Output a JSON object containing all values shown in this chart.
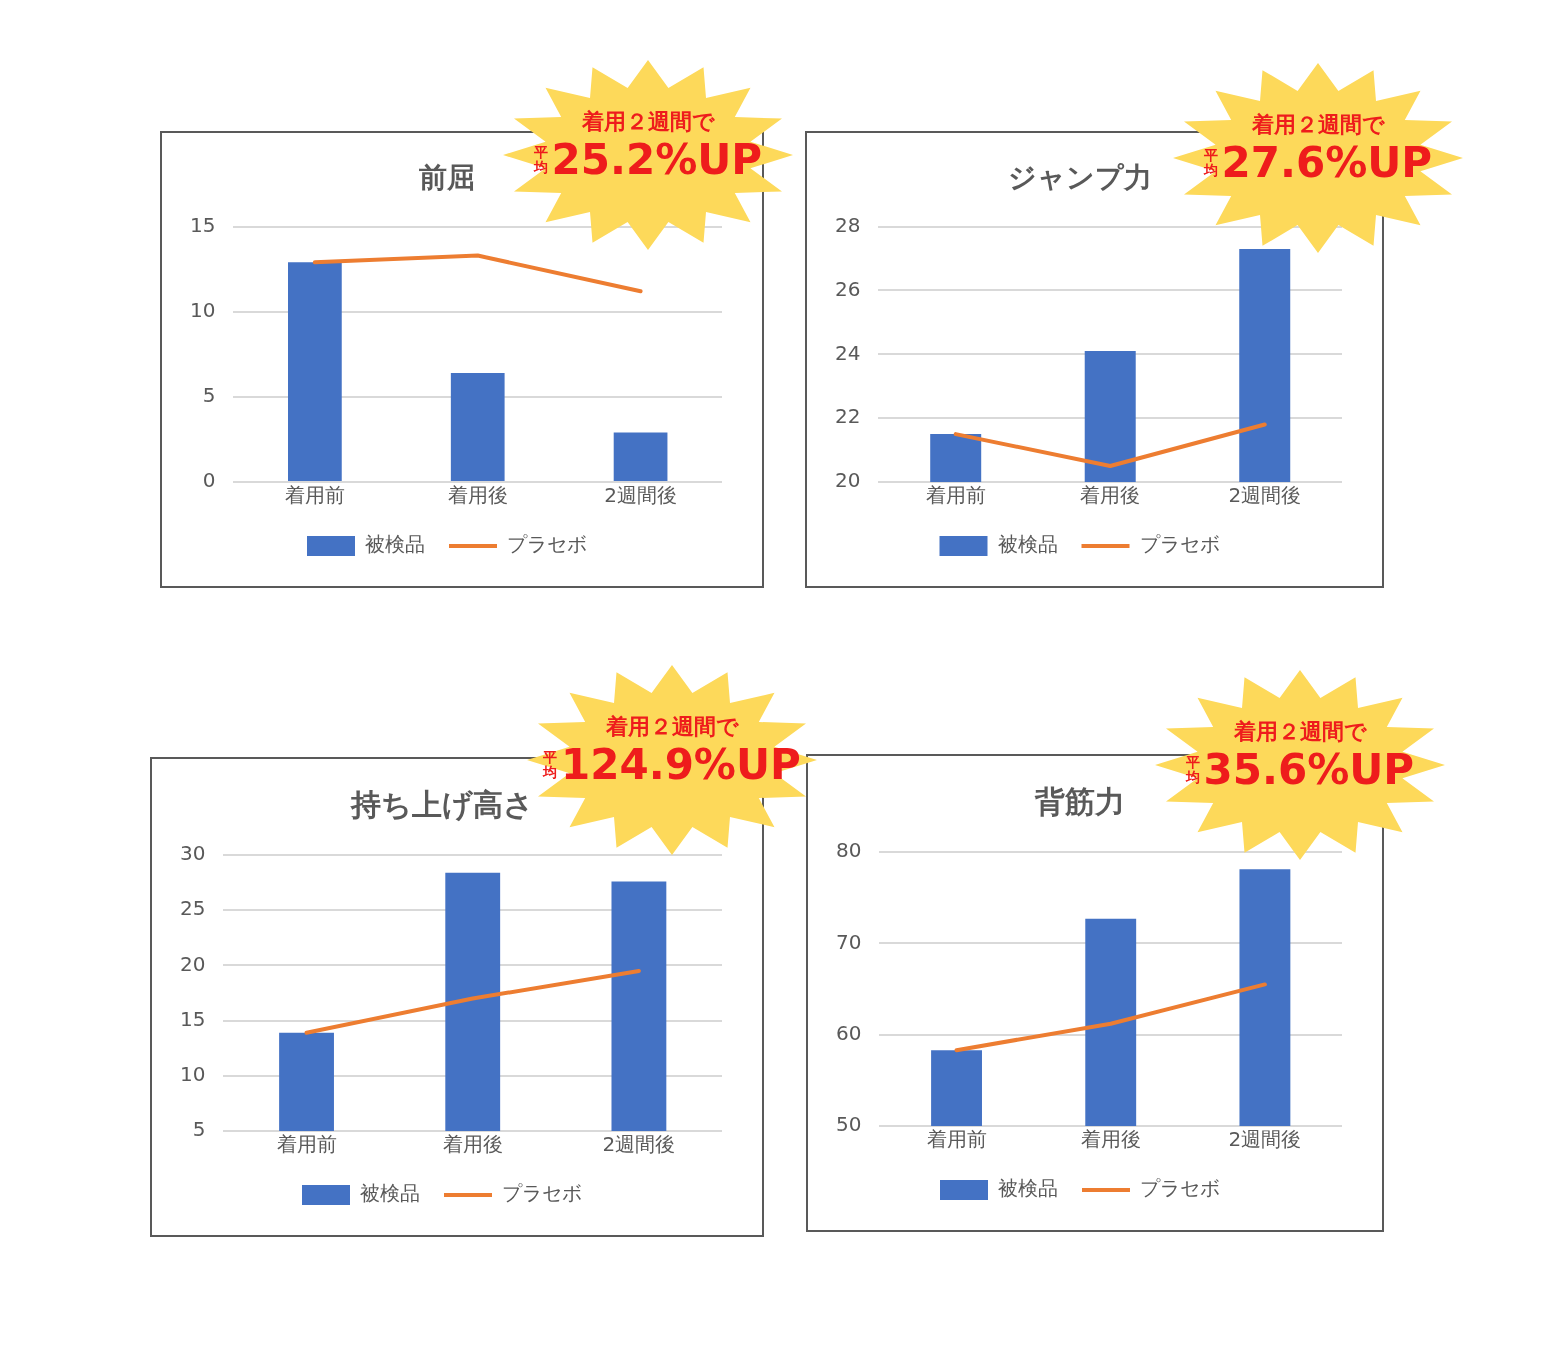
{
  "chart_data": [
    {
      "type": "bar",
      "title": "前屈",
      "categories": [
        "着用前",
        "着用後",
        "2週間後"
      ],
      "series": [
        {
          "name": "被検品",
          "color": "#4472c4",
          "values": [
            12.9,
            6.4,
            2.9
          ]
        },
        {
          "name": "プラセボ",
          "type": "line",
          "color": "#ed7d31",
          "values": [
            12.9,
            13.3,
            11.2
          ]
        }
      ],
      "ylim": [
        0,
        15
      ],
      "yticks": [
        0,
        5,
        10,
        15
      ],
      "grid": "y",
      "legend": "bottom",
      "marker": "none",
      "annotations": [
        "着用２週間で",
        "平均",
        "25.2%UP"
      ]
    },
    {
      "type": "bar",
      "title": "ジャンプ力",
      "categories": [
        "着用前",
        "着用後",
        "2週間後"
      ],
      "series": [
        {
          "name": "被検品",
          "color": "#4472c4",
          "values": [
            21.5,
            24.1,
            27.3
          ]
        },
        {
          "name": "プラセボ",
          "type": "line",
          "color": "#ed7d31",
          "values": [
            21.5,
            20.5,
            21.8
          ]
        }
      ],
      "ylim": [
        20,
        28
      ],
      "yticks": [
        20,
        22,
        24,
        26,
        28
      ],
      "grid": "y",
      "legend": "bottom",
      "marker": "none",
      "annotations": [
        "着用２週間で",
        "平均",
        "27.6%UP"
      ]
    },
    {
      "type": "bar",
      "title": "持ち上げ高さ",
      "categories": [
        "着用前",
        "着用後",
        "2週間後"
      ],
      "series": [
        {
          "name": "被検品",
          "color": "#4472c4",
          "values": [
            13.9,
            28.4,
            27.6
          ]
        },
        {
          "name": "プラセボ",
          "type": "line",
          "color": "#ed7d31",
          "values": [
            13.9,
            17.0,
            19.5
          ]
        }
      ],
      "ylim": [
        5,
        30
      ],
      "yticks": [
        5,
        10,
        15,
        20,
        25,
        30
      ],
      "grid": "y",
      "legend": "bottom",
      "marker": "none",
      "annotations": [
        "着用２週間で",
        "平均",
        "124.9%UP"
      ]
    },
    {
      "type": "bar",
      "title": "背筋力",
      "categories": [
        "着用前",
        "着用後",
        "2週間後"
      ],
      "series": [
        {
          "name": "被検品",
          "color": "#4472c4",
          "values": [
            58.3,
            72.7,
            78.1
          ]
        },
        {
          "name": "プラセボ",
          "type": "line",
          "color": "#ed7d31",
          "values": [
            58.3,
            61.2,
            65.5
          ]
        }
      ],
      "ylim": [
        50,
        80
      ],
      "yticks": [
        50,
        60,
        70,
        80
      ],
      "grid": "y",
      "legend": "bottom",
      "marker": "none",
      "annotations": [
        "着用２週間で",
        "平均",
        "35.6%UP"
      ]
    }
  ]
}
